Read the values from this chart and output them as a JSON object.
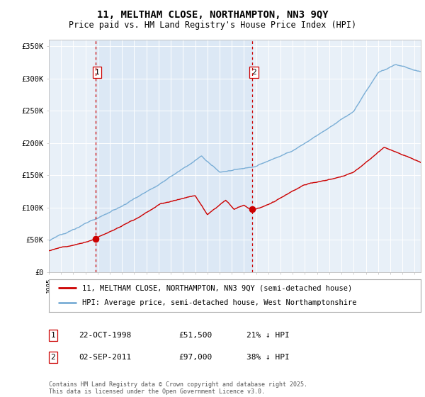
{
  "title": "11, MELTHAM CLOSE, NORTHAMPTON, NN3 9QY",
  "subtitle": "Price paid vs. HM Land Registry's House Price Index (HPI)",
  "title_fontsize": 10,
  "subtitle_fontsize": 8.5,
  "background_color": "#ffffff",
  "plot_bg_color": "#e8f0f8",
  "shaded_color": "#dce8f5",
  "sale1_year": 1998.81,
  "sale1_price": 51500,
  "sale2_year": 2011.67,
  "sale2_price": 97000,
  "red_line_color": "#cc0000",
  "blue_line_color": "#7aaed6",
  "marker_color": "#cc0000",
  "vline_color": "#cc0000",
  "ylim": [
    0,
    360000
  ],
  "yticks": [
    0,
    50000,
    100000,
    150000,
    200000,
    250000,
    300000,
    350000
  ],
  "ytick_labels": [
    "£0",
    "£50K",
    "£100K",
    "£150K",
    "£200K",
    "£250K",
    "£300K",
    "£350K"
  ],
  "legend1_label": "11, MELTHAM CLOSE, NORTHAMPTON, NN3 9QY (semi-detached house)",
  "legend2_label": "HPI: Average price, semi-detached house, West Northamptonshire",
  "annotation1": [
    "1",
    "22-OCT-1998",
    "£51,500",
    "21% ↓ HPI"
  ],
  "annotation2": [
    "2",
    "02-SEP-2011",
    "£97,000",
    "38% ↓ HPI"
  ],
  "footer": "Contains HM Land Registry data © Crown copyright and database right 2025.\nThis data is licensed under the Open Government Licence v3.0.",
  "xmin": 1995.0,
  "xmax": 2025.5
}
